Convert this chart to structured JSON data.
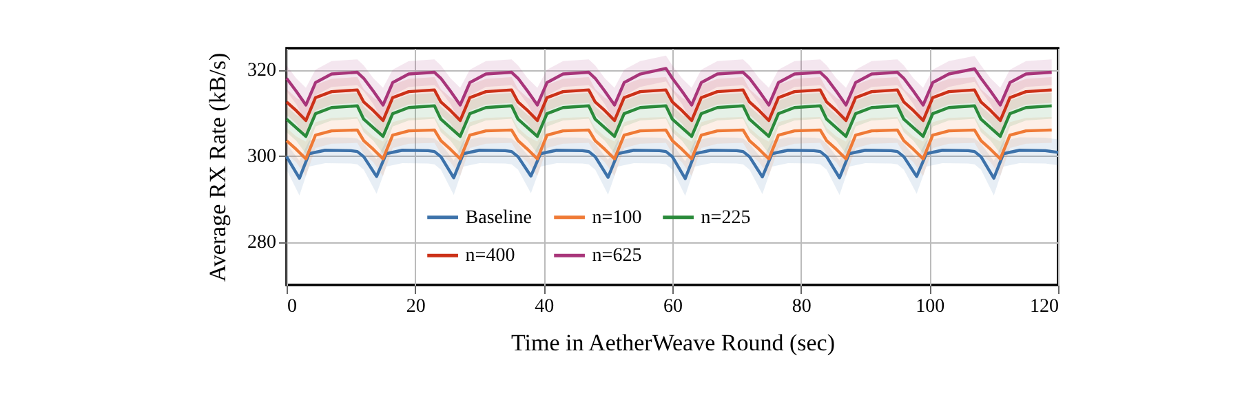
{
  "chart_data": {
    "type": "line",
    "xlabel": "Time in AetherWeave Round (sec)",
    "ylabel": "Average RX Rate (kB/s)",
    "xlim": [
      0,
      120
    ],
    "xticks": [
      0,
      20,
      40,
      60,
      80,
      100,
      120
    ],
    "ylim": [
      270,
      325
    ],
    "yticks": [
      280,
      300,
      320
    ],
    "grid": true,
    "legend": "bottom",
    "series": [
      {
        "name": "Baseline",
        "color": "#3d72aa",
        "x": [
          0,
          2,
          3.5,
          6,
          10,
          11,
          12,
          14,
          15.5,
          18,
          22,
          23,
          24,
          26,
          27.5,
          30,
          34,
          35,
          36,
          38,
          39.5,
          42,
          46,
          47,
          48,
          50,
          51.5,
          54,
          58,
          59,
          60,
          62,
          63.5,
          66,
          70,
          71,
          72,
          74,
          75.5,
          78,
          82,
          83,
          84,
          86,
          87.5,
          90,
          94,
          95,
          96,
          98,
          99.5,
          102,
          106,
          107,
          108,
          110,
          111.5,
          114,
          118,
          119,
          120
        ],
        "values": [
          299.8,
          294.8,
          300.5,
          301.3,
          301.2,
          301.0,
          299.8,
          295.2,
          300.5,
          301.3,
          301.2,
          301.0,
          299.8,
          294.9,
          300.5,
          301.3,
          301.2,
          301.0,
          299.8,
          295.3,
          300.5,
          301.3,
          301.2,
          301.0,
          299.8,
          295.0,
          300.5,
          301.3,
          301.2,
          301.0,
          299.8,
          294.7,
          300.5,
          301.3,
          301.2,
          301.0,
          299.8,
          295.1,
          300.5,
          301.3,
          301.2,
          301.0,
          299.8,
          294.9,
          300.5,
          301.3,
          301.2,
          301.0,
          299.8,
          295.2,
          300.5,
          301.3,
          301.2,
          301.0,
          299.8,
          294.8,
          300.5,
          301.3,
          301.2,
          301.0,
          300.8
        ],
        "lower": [
          296.8,
          290.8,
          297.5,
          298.3,
          298.2,
          298.0,
          296.8,
          291.2,
          297.5,
          298.3,
          298.2,
          298.0,
          296.8,
          290.9,
          297.5,
          298.3,
          298.2,
          298.0,
          296.8,
          291.3,
          297.5,
          298.3,
          298.2,
          298.0,
          296.8,
          291.0,
          297.5,
          298.3,
          298.2,
          298.0,
          296.8,
          290.7,
          297.5,
          298.3,
          298.2,
          298.0,
          296.8,
          291.1,
          297.5,
          298.3,
          298.2,
          298.0,
          296.8,
          290.9,
          297.5,
          298.3,
          298.2,
          298.0,
          296.8,
          291.2,
          297.5,
          298.3,
          298.2,
          298.0,
          296.8,
          290.8,
          297.5,
          298.3,
          298.2,
          298.0,
          297.8
        ],
        "upper": [
          302.8,
          298.8,
          303.5,
          304.3,
          304.2,
          304.0,
          302.8,
          299.2,
          303.5,
          304.3,
          304.2,
          304.0,
          302.8,
          298.9,
          303.5,
          304.3,
          304.2,
          304.0,
          302.8,
          299.3,
          303.5,
          304.3,
          304.2,
          304.0,
          302.8,
          299.0,
          303.5,
          304.3,
          304.2,
          304.0,
          302.8,
          298.7,
          303.5,
          304.3,
          304.2,
          304.0,
          302.8,
          299.1,
          303.5,
          304.3,
          304.2,
          304.0,
          302.8,
          298.9,
          303.5,
          304.3,
          304.2,
          304.0,
          302.8,
          299.2,
          303.5,
          304.3,
          304.2,
          304.0,
          302.8,
          298.8,
          303.5,
          304.3,
          304.2,
          304.0,
          303.8
        ]
      },
      {
        "name": "n=100",
        "color": "#ef7a36",
        "x": [
          0,
          1.5,
          3,
          4.5,
          7,
          11,
          12,
          13.5,
          15,
          16.5,
          19,
          23,
          24,
          25.5,
          27,
          28.5,
          31,
          35,
          36,
          37.5,
          39,
          40.5,
          43,
          47,
          48,
          49.5,
          51,
          52.5,
          55,
          59,
          60,
          61.5,
          63,
          64.5,
          67,
          71,
          72,
          73.5,
          75,
          76.5,
          79,
          83,
          84,
          85.5,
          87,
          88.5,
          91,
          95,
          96,
          97.5,
          99,
          100.5,
          103,
          107,
          108,
          109.5,
          111,
          112.5,
          115,
          119
        ],
        "values": [
          303.5,
          301.5,
          299.3,
          304.8,
          305.8,
          306.0,
          303.5,
          301.5,
          299.3,
          304.8,
          305.8,
          306.0,
          303.5,
          301.5,
          299.3,
          304.8,
          305.8,
          306.0,
          303.5,
          301.5,
          299.3,
          304.8,
          305.8,
          306.0,
          303.5,
          301.5,
          299.3,
          304.8,
          305.8,
          306.0,
          303.5,
          301.5,
          299.3,
          304.8,
          305.8,
          306.0,
          303.5,
          301.5,
          299.3,
          304.8,
          305.8,
          306.0,
          303.5,
          301.5,
          299.3,
          304.8,
          305.8,
          306.0,
          303.5,
          301.5,
          299.3,
          304.8,
          305.8,
          306.0,
          303.5,
          301.5,
          299.3,
          304.8,
          305.8,
          306.0
        ],
        "lower": [
          300.5,
          298.5,
          295.3,
          301.8,
          302.8,
          303.0,
          300.5,
          298.5,
          295.3,
          301.8,
          302.8,
          303.0,
          300.5,
          298.5,
          295.3,
          301.8,
          302.8,
          303.0,
          300.5,
          298.5,
          295.3,
          301.8,
          302.8,
          303.0,
          300.5,
          298.5,
          295.3,
          301.8,
          302.8,
          303.0,
          300.5,
          298.5,
          295.3,
          301.8,
          302.8,
          303.0,
          300.5,
          298.5,
          295.3,
          301.8,
          302.8,
          303.0,
          300.5,
          298.5,
          295.3,
          301.8,
          302.8,
          303.0,
          300.5,
          298.5,
          295.3,
          301.8,
          302.8,
          303.0,
          300.5,
          298.5,
          295.3,
          301.8,
          302.8,
          303.0
        ],
        "upper": [
          306.5,
          304.5,
          303.3,
          307.8,
          308.8,
          309.0,
          306.5,
          304.5,
          303.3,
          307.8,
          308.8,
          309.0,
          306.5,
          304.5,
          303.3,
          307.8,
          308.8,
          309.0,
          306.5,
          304.5,
          303.3,
          307.8,
          308.8,
          309.0,
          306.5,
          304.5,
          303.3,
          307.8,
          308.8,
          309.0,
          306.5,
          304.5,
          303.3,
          307.8,
          308.8,
          309.0,
          306.5,
          304.5,
          303.3,
          307.8,
          308.8,
          309.0,
          306.5,
          304.5,
          303.3,
          307.8,
          308.8,
          309.0,
          306.5,
          304.5,
          303.3,
          307.8,
          308.8,
          309.0,
          306.5,
          304.5,
          303.3,
          307.8,
          308.8,
          309.0
        ]
      },
      {
        "name": "n=225",
        "color": "#2a8a3a",
        "x": [
          0,
          1.5,
          3,
          4.5,
          7,
          11,
          12,
          13.5,
          15,
          16.5,
          19,
          23,
          24,
          25.5,
          27,
          28.5,
          31,
          35,
          36,
          37.5,
          39,
          40.5,
          43,
          47,
          48,
          49.5,
          51,
          52.5,
          55,
          59,
          60,
          61.5,
          63,
          64.5,
          67,
          71,
          72,
          73.5,
          75,
          76.5,
          79,
          83,
          84,
          85.5,
          87,
          88.5,
          91,
          95,
          96,
          97.5,
          99,
          100.5,
          103,
          107,
          108,
          109.5,
          111,
          112.5,
          115,
          119
        ],
        "values": [
          308.5,
          306.5,
          304.5,
          309.8,
          311.2,
          311.6,
          308.5,
          306.5,
          304.5,
          309.8,
          311.2,
          311.6,
          308.5,
          306.5,
          304.5,
          309.8,
          311.2,
          311.6,
          308.5,
          306.5,
          304.5,
          309.8,
          311.2,
          311.6,
          308.5,
          306.5,
          304.5,
          309.8,
          311.2,
          311.6,
          308.5,
          306.5,
          304.5,
          309.8,
          311.2,
          311.6,
          308.5,
          306.5,
          304.5,
          309.8,
          311.2,
          311.6,
          308.5,
          306.5,
          304.5,
          309.8,
          311.2,
          311.6,
          308.5,
          306.5,
          304.5,
          309.8,
          311.2,
          311.6,
          308.5,
          306.5,
          304.5,
          309.8,
          311.2,
          311.6
        ],
        "lower": [
          305.5,
          303.5,
          300.5,
          306.8,
          308.2,
          308.6,
          305.5,
          303.5,
          300.5,
          306.8,
          308.2,
          308.6,
          305.5,
          303.5,
          300.5,
          306.8,
          308.2,
          308.6,
          305.5,
          303.5,
          300.5,
          306.8,
          308.2,
          308.6,
          305.5,
          303.5,
          300.5,
          306.8,
          308.2,
          308.6,
          305.5,
          303.5,
          300.5,
          306.8,
          308.2,
          308.6,
          305.5,
          303.5,
          300.5,
          306.8,
          308.2,
          308.6,
          305.5,
          303.5,
          300.5,
          306.8,
          308.2,
          308.6,
          305.5,
          303.5,
          300.5,
          306.8,
          308.2,
          308.6,
          305.5,
          303.5,
          300.5,
          306.8,
          308.2,
          308.6
        ],
        "upper": [
          311.5,
          309.5,
          308.5,
          312.8,
          314.2,
          314.6,
          311.5,
          309.5,
          308.5,
          312.8,
          314.2,
          314.6,
          311.5,
          309.5,
          308.5,
          312.8,
          314.2,
          314.6,
          311.5,
          309.5,
          308.5,
          312.8,
          314.2,
          314.6,
          311.5,
          309.5,
          308.5,
          312.8,
          314.2,
          314.6,
          311.5,
          309.5,
          308.5,
          312.8,
          314.2,
          314.6,
          311.5,
          309.5,
          308.5,
          312.8,
          314.2,
          314.6,
          311.5,
          309.5,
          308.5,
          312.8,
          314.2,
          314.6,
          311.5,
          309.5,
          308.5,
          312.8,
          314.2,
          314.6,
          311.5,
          309.5,
          308.5,
          312.8,
          314.2,
          314.6
        ]
      },
      {
        "name": "n=400",
        "color": "#cc3118",
        "x": [
          0,
          1.5,
          3,
          4.5,
          7,
          11,
          12,
          13.5,
          15,
          16.5,
          19,
          23,
          24,
          25.5,
          27,
          28.5,
          31,
          35,
          36,
          37.5,
          39,
          40.5,
          43,
          47,
          48,
          49.5,
          51,
          52.5,
          55,
          59,
          60,
          61.5,
          63,
          64.5,
          67,
          71,
          72,
          73.5,
          75,
          76.5,
          79,
          83,
          84,
          85.5,
          87,
          88.5,
          91,
          95,
          96,
          97.5,
          99,
          100.5,
          103,
          107,
          108,
          109.5,
          111,
          112.5,
          115,
          119
        ],
        "values": [
          312.5,
          310.5,
          308.2,
          313.5,
          314.9,
          315.3,
          312.5,
          310.5,
          308.2,
          313.5,
          314.9,
          315.3,
          312.5,
          310.5,
          308.2,
          313.5,
          314.9,
          315.3,
          312.5,
          310.5,
          308.2,
          313.5,
          314.9,
          315.3,
          312.5,
          310.5,
          308.2,
          313.5,
          314.9,
          315.3,
          312.5,
          310.5,
          308.2,
          313.5,
          314.9,
          315.3,
          312.5,
          310.5,
          308.2,
          313.5,
          314.9,
          315.3,
          312.5,
          310.5,
          308.2,
          313.5,
          314.9,
          315.3,
          312.5,
          310.5,
          308.2,
          313.5,
          314.9,
          315.3,
          312.5,
          310.5,
          308.2,
          313.5,
          314.9,
          315.3
        ],
        "lower": [
          309.5,
          307.5,
          304.2,
          310.5,
          311.9,
          312.3,
          309.5,
          307.5,
          304.2,
          310.5,
          311.9,
          312.3,
          309.5,
          307.5,
          304.2,
          310.5,
          311.9,
          312.3,
          309.5,
          307.5,
          304.2,
          310.5,
          311.9,
          312.3,
          309.5,
          307.5,
          304.2,
          310.5,
          311.9,
          312.3,
          309.5,
          307.5,
          304.2,
          310.5,
          311.9,
          312.3,
          309.5,
          307.5,
          304.2,
          310.5,
          311.9,
          312.3,
          309.5,
          307.5,
          304.2,
          310.5,
          311.9,
          312.3,
          309.5,
          307.5,
          304.2,
          310.5,
          311.9,
          312.3,
          309.5,
          307.5,
          304.2,
          310.5,
          311.9,
          312.3
        ],
        "upper": [
          315.5,
          313.5,
          312.2,
          316.5,
          317.9,
          318.3,
          315.5,
          313.5,
          312.2,
          316.5,
          317.9,
          318.3,
          315.5,
          313.5,
          312.2,
          316.5,
          317.9,
          318.3,
          315.5,
          313.5,
          312.2,
          316.5,
          317.9,
          318.3,
          315.5,
          313.5,
          312.2,
          316.5,
          317.9,
          318.3,
          315.5,
          313.5,
          312.2,
          316.5,
          317.9,
          318.3,
          315.5,
          313.5,
          312.2,
          316.5,
          317.9,
          318.3,
          315.5,
          313.5,
          312.2,
          316.5,
          317.9,
          318.3,
          315.5,
          313.5,
          312.2,
          316.5,
          317.9,
          318.3,
          315.5,
          313.5,
          312.2,
          316.5,
          317.9,
          318.3
        ]
      },
      {
        "name": "n=625",
        "color": "#a8357a",
        "x": [
          0,
          1.5,
          3,
          4.5,
          7,
          11,
          12,
          13.5,
          15,
          16.5,
          19,
          23,
          24,
          25.5,
          27,
          28.5,
          31,
          35,
          36,
          37.5,
          39,
          40.5,
          43,
          47,
          48,
          49.5,
          51,
          52.5,
          55,
          59,
          60,
          61.5,
          63,
          64.5,
          67,
          71,
          72,
          73.5,
          75,
          76.5,
          79,
          83,
          84,
          85.5,
          87,
          88.5,
          91,
          95,
          96,
          97.5,
          99,
          100.5,
          103,
          107,
          108,
          109.5,
          111,
          112.5,
          115,
          119
        ],
        "values": [
          318,
          315,
          311.8,
          317,
          319,
          319.4,
          318,
          315,
          311.8,
          317,
          319,
          319.4,
          318,
          315,
          311.8,
          317,
          319,
          319.4,
          318,
          315,
          311.8,
          317,
          319,
          319.4,
          318,
          315,
          311.8,
          317,
          319,
          320.3,
          318,
          315,
          311.8,
          317,
          319,
          319.4,
          318,
          315,
          311.8,
          317,
          319,
          319.4,
          318,
          315,
          311.8,
          317,
          319,
          319.4,
          318,
          315,
          311.8,
          317,
          319,
          320.2,
          318,
          315,
          311.8,
          317,
          319,
          319.4
        ],
        "lower": [
          315,
          312,
          307.8,
          314,
          316,
          316.4,
          315,
          312,
          307.8,
          314,
          316,
          316.4,
          315,
          312,
          307.8,
          314,
          316,
          316.4,
          315,
          312,
          307.8,
          314,
          316,
          316.4,
          315,
          312,
          307.8,
          314,
          316,
          317.3,
          315,
          312,
          307.8,
          314,
          316,
          316.4,
          315,
          312,
          307.8,
          314,
          316,
          316.4,
          315,
          312,
          307.8,
          314,
          316,
          316.4,
          315,
          312,
          307.8,
          314,
          316,
          317.2,
          315,
          312,
          307.8,
          314,
          316,
          316.4
        ],
        "upper": [
          321,
          318,
          315.8,
          320,
          322,
          322.4,
          321,
          318,
          315.8,
          320,
          322,
          322.4,
          321,
          318,
          315.8,
          320,
          322,
          322.4,
          321,
          318,
          315.8,
          320,
          322,
          322.4,
          321,
          318,
          315.8,
          320,
          322,
          323.3,
          321,
          318,
          315.8,
          320,
          322,
          322.4,
          321,
          318,
          315.8,
          320,
          322,
          322.4,
          321,
          318,
          315.8,
          320,
          322,
          322.4,
          321,
          318,
          315.8,
          320,
          322,
          323.2,
          321,
          318,
          315.8,
          320,
          322,
          322.4
        ]
      }
    ]
  }
}
